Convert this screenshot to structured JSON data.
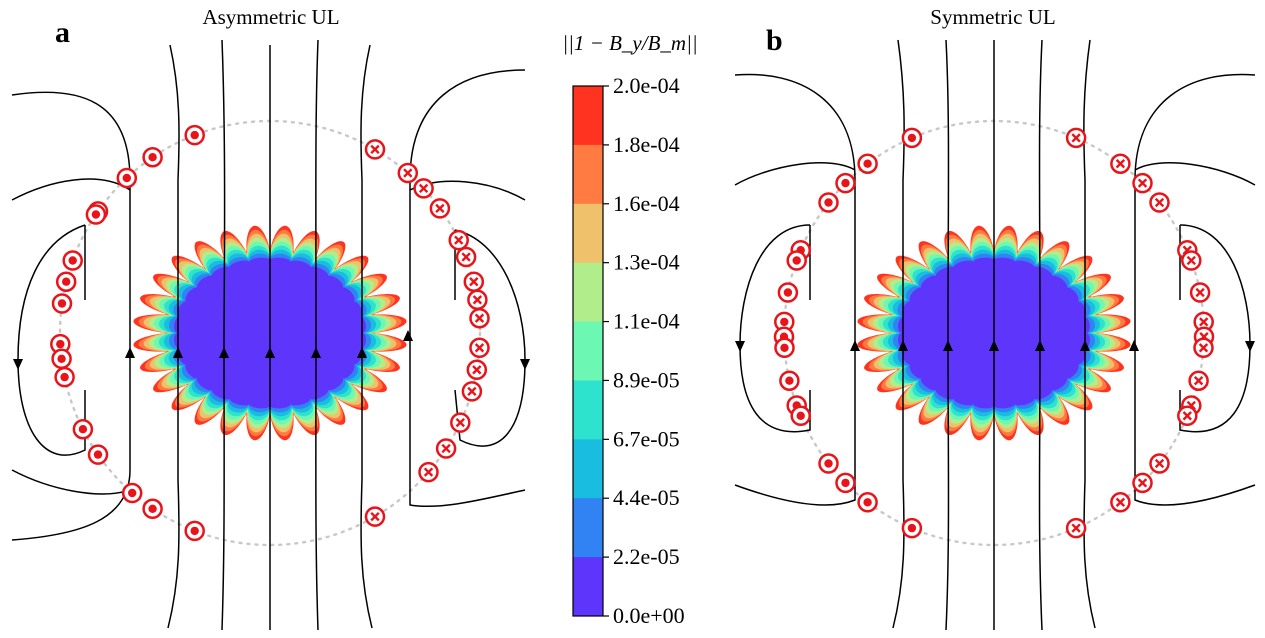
{
  "panels": [
    {
      "letter": "a",
      "title": "Asymmetric UL"
    },
    {
      "letter": "b",
      "title": "Symmetric UL"
    }
  ],
  "colorbar": {
    "title": "||1 − B_y/B_m||",
    "labels": [
      "2.0e-04",
      "1.8e-04",
      "1.6e-04",
      "1.3e-04",
      "1.1e-04",
      "8.9e-05",
      "6.7e-05",
      "4.4e-05",
      "2.2e-05",
      "0.0e+00"
    ],
    "colors": [
      "#ff3420",
      "#ff7b42",
      "#eec16a",
      "#b1ed8a",
      "#6cf7b3",
      "#2ee3cd",
      "#18bde0",
      "#3183f4",
      "#5e35fa"
    ]
  },
  "markers": {
    "out_color": "#e8141a",
    "in_color": "#e8141a"
  }
}
